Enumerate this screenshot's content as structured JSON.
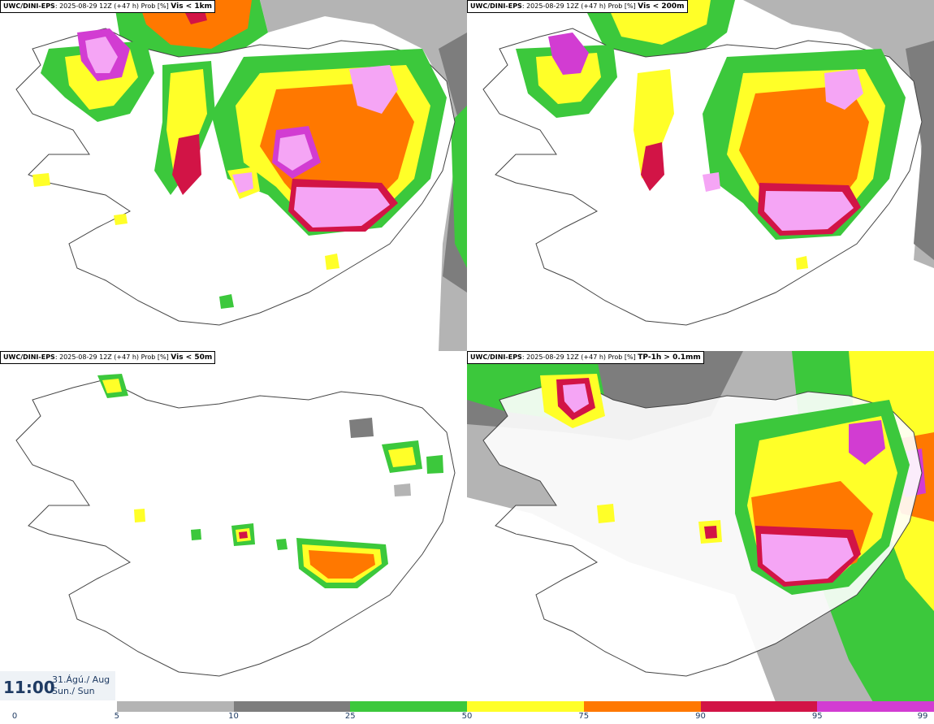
{
  "panels": [
    {
      "model": "UWC/DINI-EPS",
      "run": "2025-08-29 12Z (+47 h) Prob [%]",
      "param": "Vis < 1km"
    },
    {
      "model": "UWC/DINI-EPS",
      "run": "2025-08-29 12Z (+47 h) Prob [%]",
      "param": "Vis < 200m"
    },
    {
      "model": "UWC/DINI-EPS",
      "run": "2025-08-29 12Z (+47 h) Prob [%]",
      "param": "Vis < 50m"
    },
    {
      "model": "UWC/DINI-EPS",
      "run": "2025-08-29 12Z (+47 h) Prob [%]",
      "param": "TP-1h > 0.1mm"
    }
  ],
  "time": {
    "hour": "11:00",
    "date_line1": "31.Ágú./ Aug",
    "date_line2": "Sun./ Sun"
  },
  "legend": {
    "ticks": [
      "0",
      "5",
      "10",
      "25",
      "50",
      "75",
      "90",
      "95",
      "99"
    ],
    "colors": [
      "#ffffff",
      "#b4b4b4",
      "#7d7d7d",
      "#3cc83c",
      "#ffff28",
      "#ff7800",
      "#d21446",
      "#d23cd2",
      "#f5a5f5"
    ]
  }
}
